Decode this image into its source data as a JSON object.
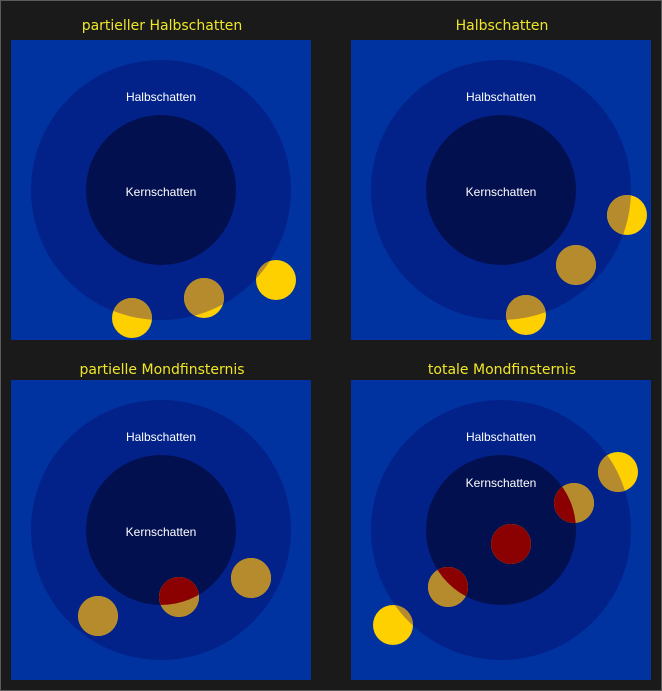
{
  "colors": {
    "background": "#1a1a1a",
    "panel": "#0033a0",
    "penumbra": "#02228a",
    "umbra": "#02104f",
    "moon_full": "#ffd000",
    "moon_dimmed": "#b58b2e",
    "moon_eclipsed": "#8b0000",
    "title": "#f0e628",
    "label": "#ffffff"
  },
  "panels": [
    {
      "title": "partieller Halbschatten",
      "penumbra_label": "Halbschatten",
      "umbra_label": "Kernschatten",
      "moons": [
        "partial-penumbra",
        "penumbra",
        "full"
      ]
    },
    {
      "title": "Halbschatten",
      "penumbra_label": "Halbschatten",
      "umbra_label": "Kernschatten",
      "moons": [
        "partial-penumbra",
        "penumbra",
        "partial-penumbra"
      ]
    },
    {
      "title": "partielle Mondfinsternis",
      "penumbra_label": "Halbschatten",
      "umbra_label": "Kernschatten",
      "moons": [
        "penumbra",
        "partial-umbra",
        "penumbra"
      ]
    },
    {
      "title": "totale Mondfinsternis",
      "penumbra_label": "Halbschatten",
      "umbra_label": "Kernschatten",
      "moons": [
        "partial-penumbra",
        "partial-umbra",
        "umbra",
        "partial-umbra",
        "partial-penumbra"
      ]
    }
  ]
}
